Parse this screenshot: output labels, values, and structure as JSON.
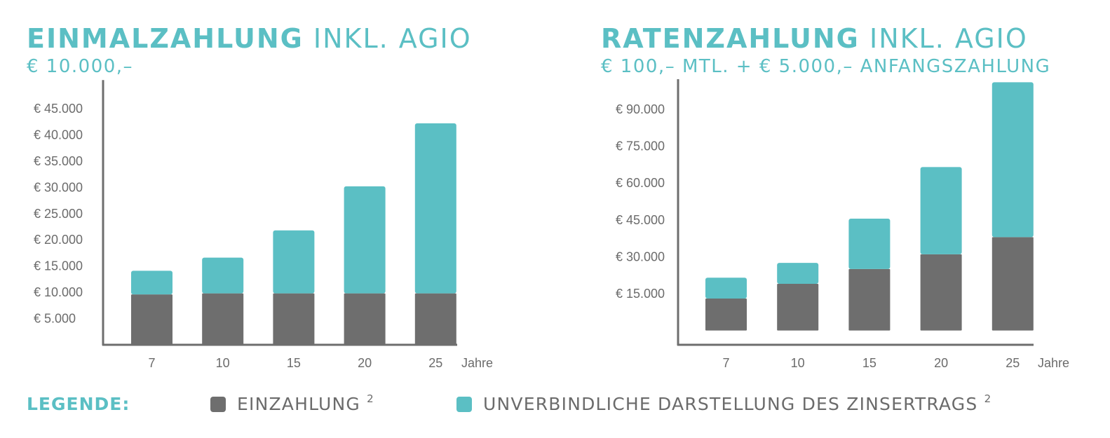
{
  "colors": {
    "einzahlung": "#6e6e6e",
    "zins": "#5bbfc4",
    "axis": "#6e6e6e",
    "tick_text": "#6b6b6b"
  },
  "chart_data": [
    {
      "type": "bar",
      "stacked": true,
      "title_bold": "EINMALZAHLUNG",
      "title_rest": "INKL. AGIO",
      "subtitle": "€ 10.000,–",
      "categories": [
        "7",
        "10",
        "15",
        "20",
        "25"
      ],
      "xlabel": "Jahre",
      "series": [
        {
          "name": "EINZAHLUNG",
          "values": [
            9600,
            9800,
            9800,
            9800,
            9800
          ]
        },
        {
          "name": "UNVERBINDLICHE DARSTELLUNG DES ZINSERTRAGS",
          "values": [
            4500,
            6800,
            12000,
            20400,
            32400
          ]
        }
      ],
      "yticks": [
        5000,
        10000,
        15000,
        20000,
        25000,
        30000,
        35000,
        40000,
        45000
      ],
      "ytick_labels": [
        "€   5.000",
        "€ 10.000",
        "€ 15.000",
        "€ 20.000",
        "€ 25.000",
        "€ 30.000",
        "€ 35.000",
        "€ 40.000",
        "€ 45.000"
      ],
      "ylim": [
        0,
        47500
      ]
    },
    {
      "type": "bar",
      "stacked": true,
      "title_bold": "RATENZAHLUNG",
      "title_rest": "INKL. AGIO",
      "subtitle": "€ 100,– MTL. + € 5.000,– ANFANGSZAHLUNG",
      "categories": [
        "7",
        "10",
        "15",
        "20",
        "25"
      ],
      "xlabel": "Jahre",
      "series": [
        {
          "name": "EINZAHLUNG",
          "values": [
            13000,
            19000,
            25000,
            31000,
            38000
          ]
        },
        {
          "name": "UNVERBINDLICHE DARSTELLUNG DES ZINSERTRAGS",
          "values": [
            8500,
            8500,
            20500,
            35500,
            63000
          ]
        }
      ],
      "yticks": [
        15000,
        30000,
        45000,
        60000,
        75000,
        90000
      ],
      "ytick_labels": [
        "€ 15.000",
        "€ 30.000",
        "€ 45.000",
        "€ 60.000",
        "€ 75.000",
        "€ 90.000"
      ],
      "ylim": [
        0,
        102000
      ],
      "yaxis_floor": 20800
    }
  ],
  "legend": {
    "title": "LEGENDE:",
    "items": [
      {
        "label": "EINZAHLUNG",
        "sup": "2",
        "color": "#6e6e6e"
      },
      {
        "label": "UNVERBINDLICHE DARSTELLUNG DES ZINSERTRAGS",
        "sup": "2",
        "color": "#5bbfc4"
      }
    ]
  }
}
